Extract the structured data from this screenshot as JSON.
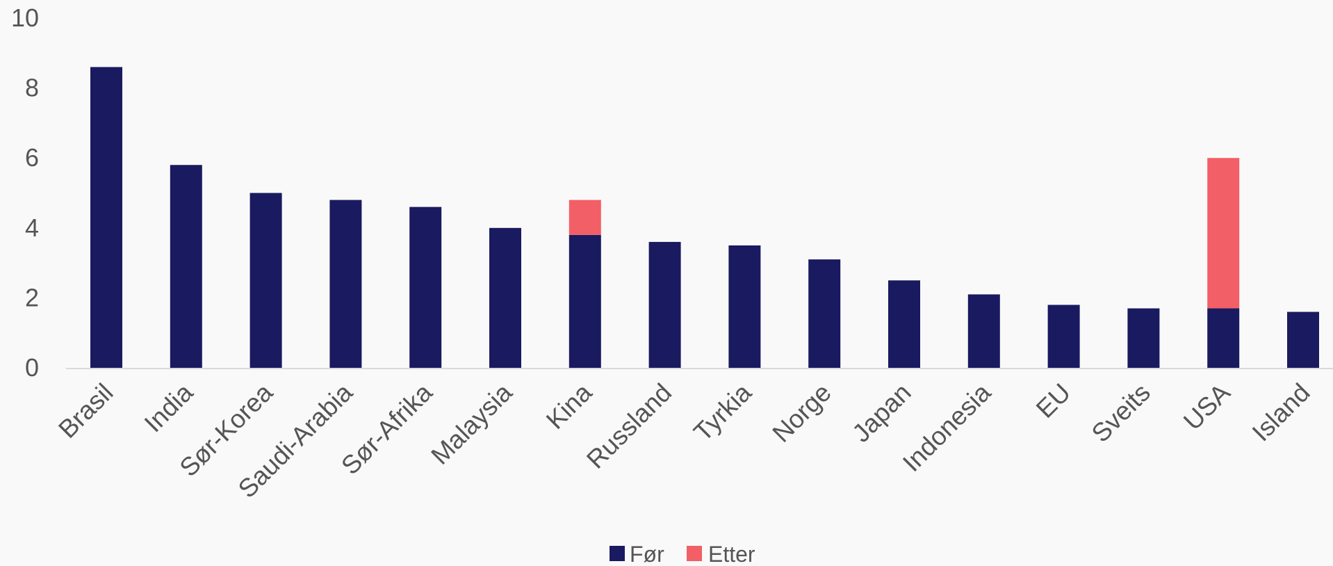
{
  "chart_data": {
    "type": "bar",
    "stacked": true,
    "title": "",
    "xlabel": "",
    "ylabel": "",
    "ylim": [
      0,
      10
    ],
    "yticks": [
      0,
      2,
      4,
      6,
      8,
      10
    ],
    "grid": false,
    "legend_position": "bottom",
    "categories": [
      "Brasil",
      "India",
      "Sør-Korea",
      "Saudi-Arabia",
      "Sør-Afrika",
      "Malaysia",
      "Kina",
      "Russland",
      "Tyrkia",
      "Norge",
      "Japan",
      "Indonesia",
      "EU",
      "Sveits",
      "USA",
      "Island"
    ],
    "series": [
      {
        "name": "Før",
        "color": "#1a1a60",
        "values": [
          8.6,
          5.8,
          5.0,
          4.8,
          4.6,
          4.0,
          3.8,
          3.6,
          3.5,
          3.1,
          2.5,
          2.1,
          1.8,
          1.7,
          1.7,
          1.6
        ]
      },
      {
        "name": "Etter",
        "color": "#f25f66",
        "values": [
          0,
          0,
          0,
          0,
          0,
          0,
          1.0,
          0,
          0,
          0,
          0,
          0,
          0,
          0,
          4.3,
          0
        ]
      }
    ],
    "axis_color": "#d9d9d9",
    "text_color": "#555555"
  }
}
